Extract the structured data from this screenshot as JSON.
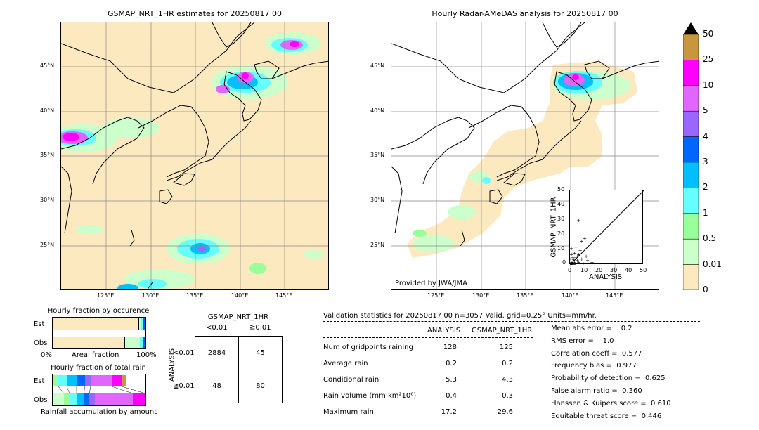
{
  "left_map": {
    "title": "GSMAP_NRT_1HR estimates for 20250817 00",
    "lat_labels": [
      "45°N",
      "40°N",
      "35°N",
      "30°N",
      "25°N"
    ],
    "lon_labels": [
      "125°E",
      "130°E",
      "135°E",
      "140°E",
      "145°E"
    ]
  },
  "right_map": {
    "title": "Hourly Radar-AMeDAS analysis for 20250817 00",
    "lat_labels": [
      "45°N",
      "40°N",
      "35°N",
      "30°N",
      "25°N"
    ],
    "lon_labels": [
      "125°E",
      "130°E",
      "135°E",
      "140°E",
      "145°E"
    ],
    "credit": "Provided by JWA/JMA"
  },
  "colorbar": {
    "labels": [
      "50",
      "25",
      "10",
      "5",
      "4",
      "3",
      "2",
      "1",
      "0.5",
      "0.01",
      "0"
    ],
    "colors": [
      "#c8963c",
      "#ff00ff",
      "#e066ff",
      "#9966ff",
      "#0066ff",
      "#00bfff",
      "#66ffff",
      "#99ff99",
      "#ccffcc",
      "#fde9bf"
    ]
  },
  "scatter": {
    "ylabel": "GSMAP_NRT_1HR",
    "xlabel": "ANALYSIS",
    "ticks": [
      "0",
      "10",
      "20",
      "30",
      "40",
      "50"
    ]
  },
  "occurrence": {
    "title": "Hourly fraction by occurence",
    "rows": [
      "Est",
      "Obs"
    ],
    "xaxis_left": "0%",
    "xaxis_mid": "Areal fraction",
    "xaxis_right": "100%"
  },
  "total_rain": {
    "title": "Hourly fraction of total rain",
    "rows": [
      "Est",
      "Obs"
    ],
    "footer": "Rainfall accumulation by amount"
  },
  "contingency": {
    "title": "GSMAP_NRT_1HR",
    "col_labels": [
      "<0.01",
      "≧0.01"
    ],
    "row_title": "ANALYSIS",
    "row_labels": [
      "<0.01",
      "≧0.01"
    ],
    "cells": [
      [
        "2884",
        "45"
      ],
      [
        "48",
        "80"
      ]
    ]
  },
  "validation": {
    "header": "Validation statistics for 20250817 00  n=3057 Valid. grid=0.25° Units=mm/hr.",
    "col_analysis": "ANALYSIS",
    "col_gsmap": "GSMAP_NRT_1HR",
    "rows": [
      {
        "label": "Num of gridpoints raining",
        "analysis": "128",
        "gsmap": "125"
      },
      {
        "label": "Average rain",
        "analysis": "0.2",
        "gsmap": "0.2"
      },
      {
        "label": "Conditional rain",
        "analysis": "5.3",
        "gsmap": "4.3"
      },
      {
        "label": "Rain volume (mm km²10⁶)",
        "analysis": "0.4",
        "gsmap": "0.3"
      },
      {
        "label": "Maximum rain",
        "analysis": "17.2",
        "gsmap": "29.6"
      }
    ],
    "scores": [
      "Mean abs error =    0.2",
      "RMS error =    1.0",
      "Correlation coeff =  0.577",
      "Frequency bias =  0.977",
      "Probability of detection =  0.625",
      "False alarm ratio =  0.360",
      "Hanssen & Kuipers score =  0.610",
      "Equitable threat score =  0.446"
    ]
  },
  "chart_data": [
    {
      "type": "heatmap",
      "title": "GSMAP_NRT_1HR estimates for 20250817 00",
      "xlabel": "",
      "ylabel": "",
      "xlim": [
        120,
        150
      ],
      "ylim": [
        20,
        50
      ],
      "x_ticks": [
        "125°E",
        "130°E",
        "135°E",
        "140°E",
        "145°E"
      ],
      "y_ticks": [
        "45°N",
        "40°N",
        "35°N",
        "30°N",
        "25°N"
      ]
    },
    {
      "type": "heatmap",
      "title": "Hourly Radar-AMeDAS analysis for 20250817 00",
      "xlabel": "",
      "ylabel": "",
      "xlim": [
        120,
        150
      ],
      "ylim": [
        20,
        50
      ]
    },
    {
      "type": "scatter",
      "xlabel": "ANALYSIS",
      "ylabel": "GSMAP_NRT_1HR",
      "xlim": [
        0,
        50
      ],
      "ylim": [
        0,
        50
      ],
      "points": [
        [
          0.5,
          0.3
        ],
        [
          1,
          2
        ],
        [
          1.5,
          0.5
        ],
        [
          2,
          1
        ],
        [
          2,
          5
        ],
        [
          3,
          2
        ],
        [
          3,
          8
        ],
        [
          4,
          1
        ],
        [
          5,
          3
        ],
        [
          5,
          6
        ],
        [
          6,
          2
        ],
        [
          6,
          30
        ],
        [
          7,
          10
        ],
        [
          8,
          4
        ],
        [
          8,
          16
        ],
        [
          9,
          1
        ],
        [
          10,
          18
        ],
        [
          12,
          3
        ],
        [
          15,
          2
        ],
        [
          17,
          1
        ],
        [
          1,
          7
        ],
        [
          2,
          9
        ],
        [
          4,
          12
        ],
        [
          0.5,
          4
        ],
        [
          1,
          11
        ],
        [
          3,
          0.5
        ],
        [
          6,
          7
        ],
        [
          11,
          6
        ],
        [
          2.5,
          3.5
        ],
        [
          4,
          5
        ]
      ]
    },
    {
      "type": "table",
      "title": "GSMAP_NRT_1HR",
      "rows": [
        [
          "2884",
          "45"
        ],
        [
          "48",
          "80"
        ]
      ]
    }
  ]
}
